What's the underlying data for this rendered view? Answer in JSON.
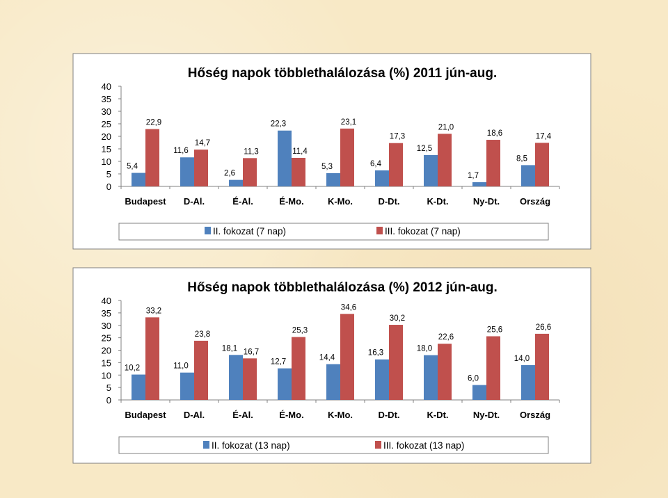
{
  "colors": {
    "background": "#f8e9c6",
    "series_blue": "#4f81bd",
    "series_red": "#c0504d"
  },
  "chart_data": [
    {
      "type": "bar",
      "title": "Hőség napok többlethalálozása (%) 2011 jún-aug.",
      "categories": [
        "Budapest",
        "D-Al.",
        "É-Al.",
        "É-Mo.",
        "K-Mo.",
        "D-Dt.",
        "K-Dt.",
        "Ny-Dt.",
        "Ország"
      ],
      "ylim": [
        0,
        40
      ],
      "yticks": [
        "0",
        "5",
        "10",
        "15",
        "20",
        "25",
        "30",
        "35",
        "40"
      ],
      "grid": false,
      "legend_position": "bottom",
      "series": [
        {
          "name": "II. fokozat (7 nap)",
          "color": "#4f81bd",
          "values": [
            5.4,
            11.6,
            2.6,
            22.3,
            5.3,
            6.4,
            12.5,
            1.7,
            8.5
          ],
          "labels": [
            "5,4",
            "11,6",
            "2,6",
            "22,3",
            "5,3",
            "6,4",
            "12,5",
            "1,7",
            "8,5"
          ]
        },
        {
          "name": "III. fokozat (7 nap)",
          "color": "#c0504d",
          "values": [
            22.9,
            14.7,
            11.3,
            11.4,
            23.1,
            17.3,
            21.0,
            18.6,
            17.4
          ],
          "labels": [
            "22,9",
            "14,7",
            "11,3",
            "11,4",
            "23,1",
            "17,3",
            "21,0",
            "18,6",
            "17,4"
          ]
        }
      ]
    },
    {
      "type": "bar",
      "title": "Hőség napok többlethalálozása (%) 2012 jún-aug.",
      "categories": [
        "Budapest",
        "D-Al.",
        "É-Al.",
        "É-Mo.",
        "K-Mo.",
        "D-Dt.",
        "K-Dt.",
        "Ny-Dt.",
        "Ország"
      ],
      "ylim": [
        0,
        40
      ],
      "yticks": [
        "0",
        "5",
        "10",
        "15",
        "20",
        "25",
        "30",
        "35",
        "40"
      ],
      "grid": false,
      "legend_position": "bottom",
      "series": [
        {
          "name": "II. fokozat (13 nap)",
          "color": "#4f81bd",
          "values": [
            10.2,
            11.0,
            18.1,
            12.7,
            14.4,
            16.3,
            18.0,
            6.0,
            14.0
          ],
          "labels": [
            "10,2",
            "11,0",
            "18,1",
            "12,7",
            "14,4",
            "16,3",
            "18,0",
            "6,0",
            "14,0"
          ]
        },
        {
          "name": "III. fokozat (13 nap)",
          "color": "#c0504d",
          "values": [
            33.2,
            23.8,
            16.7,
            25.3,
            34.6,
            30.2,
            22.6,
            25.6,
            26.6
          ],
          "labels": [
            "33,2",
            "23,8",
            "16,7",
            "25,3",
            "34,6",
            "30,2",
            "22,6",
            "25,6",
            "26,6"
          ]
        }
      ]
    }
  ]
}
